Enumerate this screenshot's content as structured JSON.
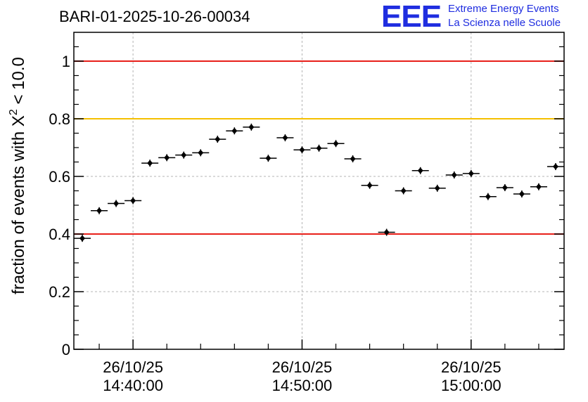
{
  "header": {
    "title": "BARI-01-2025-10-26-00034"
  },
  "logo": {
    "mark": "EEE",
    "line1": "Extreme Energy Events",
    "line2": "La Scienza nelle Scuole"
  },
  "chart_data": {
    "type": "scatter",
    "ylabel_prefix": "fraction of events with ",
    "ylabel_symbol": "X",
    "ylabel_superscript": "2",
    "ylabel_suffix": " < 10.0",
    "ylim": [
      0,
      1.1
    ],
    "yticks": [
      0,
      0.2,
      0.4,
      0.6,
      0.8,
      1
    ],
    "ytick_labels": [
      "0",
      "0.2",
      "0.4",
      "0.6",
      "0.8",
      "1"
    ],
    "xlim": [
      "14:36:30",
      "15:05:30"
    ],
    "xticks": [
      {
        "time": "14:40:00",
        "date_label": "26/10/25",
        "time_label": "14:40:00"
      },
      {
        "time": "14:50:00",
        "date_label": "26/10/25",
        "time_label": "14:50:00"
      },
      {
        "time": "15:00:00",
        "date_label": "26/10/25",
        "time_label": "15:00:00"
      }
    ],
    "minor_ticks": [
      "14:38:00",
      "14:42:00",
      "14:44:00",
      "14:46:00",
      "14:48:00",
      "14:52:00",
      "14:54:00",
      "14:56:00",
      "14:58:00",
      "15:02:00",
      "15:04:00"
    ],
    "grid": true,
    "reference_lines": [
      {
        "y": 1.0,
        "color": "#e8201a"
      },
      {
        "y": 0.8,
        "color": "#f5c000"
      },
      {
        "y": 0.4,
        "color": "#e8201a"
      }
    ],
    "bin_width_minutes": 1,
    "points": [
      {
        "x": "14:37:00",
        "y": 0.385
      },
      {
        "x": "14:38:00",
        "y": 0.481
      },
      {
        "x": "14:39:00",
        "y": 0.506
      },
      {
        "x": "14:40:00",
        "y": 0.516
      },
      {
        "x": "14:41:00",
        "y": 0.646
      },
      {
        "x": "14:42:00",
        "y": 0.665
      },
      {
        "x": "14:43:00",
        "y": 0.674
      },
      {
        "x": "14:44:00",
        "y": 0.682
      },
      {
        "x": "14:45:00",
        "y": 0.729
      },
      {
        "x": "14:46:00",
        "y": 0.758
      },
      {
        "x": "14:47:00",
        "y": 0.771
      },
      {
        "x": "14:48:00",
        "y": 0.663
      },
      {
        "x": "14:49:00",
        "y": 0.734
      },
      {
        "x": "14:50:00",
        "y": 0.692
      },
      {
        "x": "14:51:00",
        "y": 0.698
      },
      {
        "x": "14:52:00",
        "y": 0.714
      },
      {
        "x": "14:53:00",
        "y": 0.661
      },
      {
        "x": "14:54:00",
        "y": 0.569
      },
      {
        "x": "14:55:00",
        "y": 0.406
      },
      {
        "x": "14:56:00",
        "y": 0.55
      },
      {
        "x": "14:57:00",
        "y": 0.62
      },
      {
        "x": "14:58:00",
        "y": 0.559
      },
      {
        "x": "14:59:00",
        "y": 0.605
      },
      {
        "x": "15:00:00",
        "y": 0.61
      },
      {
        "x": "15:01:00",
        "y": 0.53
      },
      {
        "x": "15:02:00",
        "y": 0.561
      },
      {
        "x": "15:03:00",
        "y": 0.539
      },
      {
        "x": "15:04:00",
        "y": 0.564
      },
      {
        "x": "15:05:00",
        "y": 0.634
      }
    ]
  }
}
